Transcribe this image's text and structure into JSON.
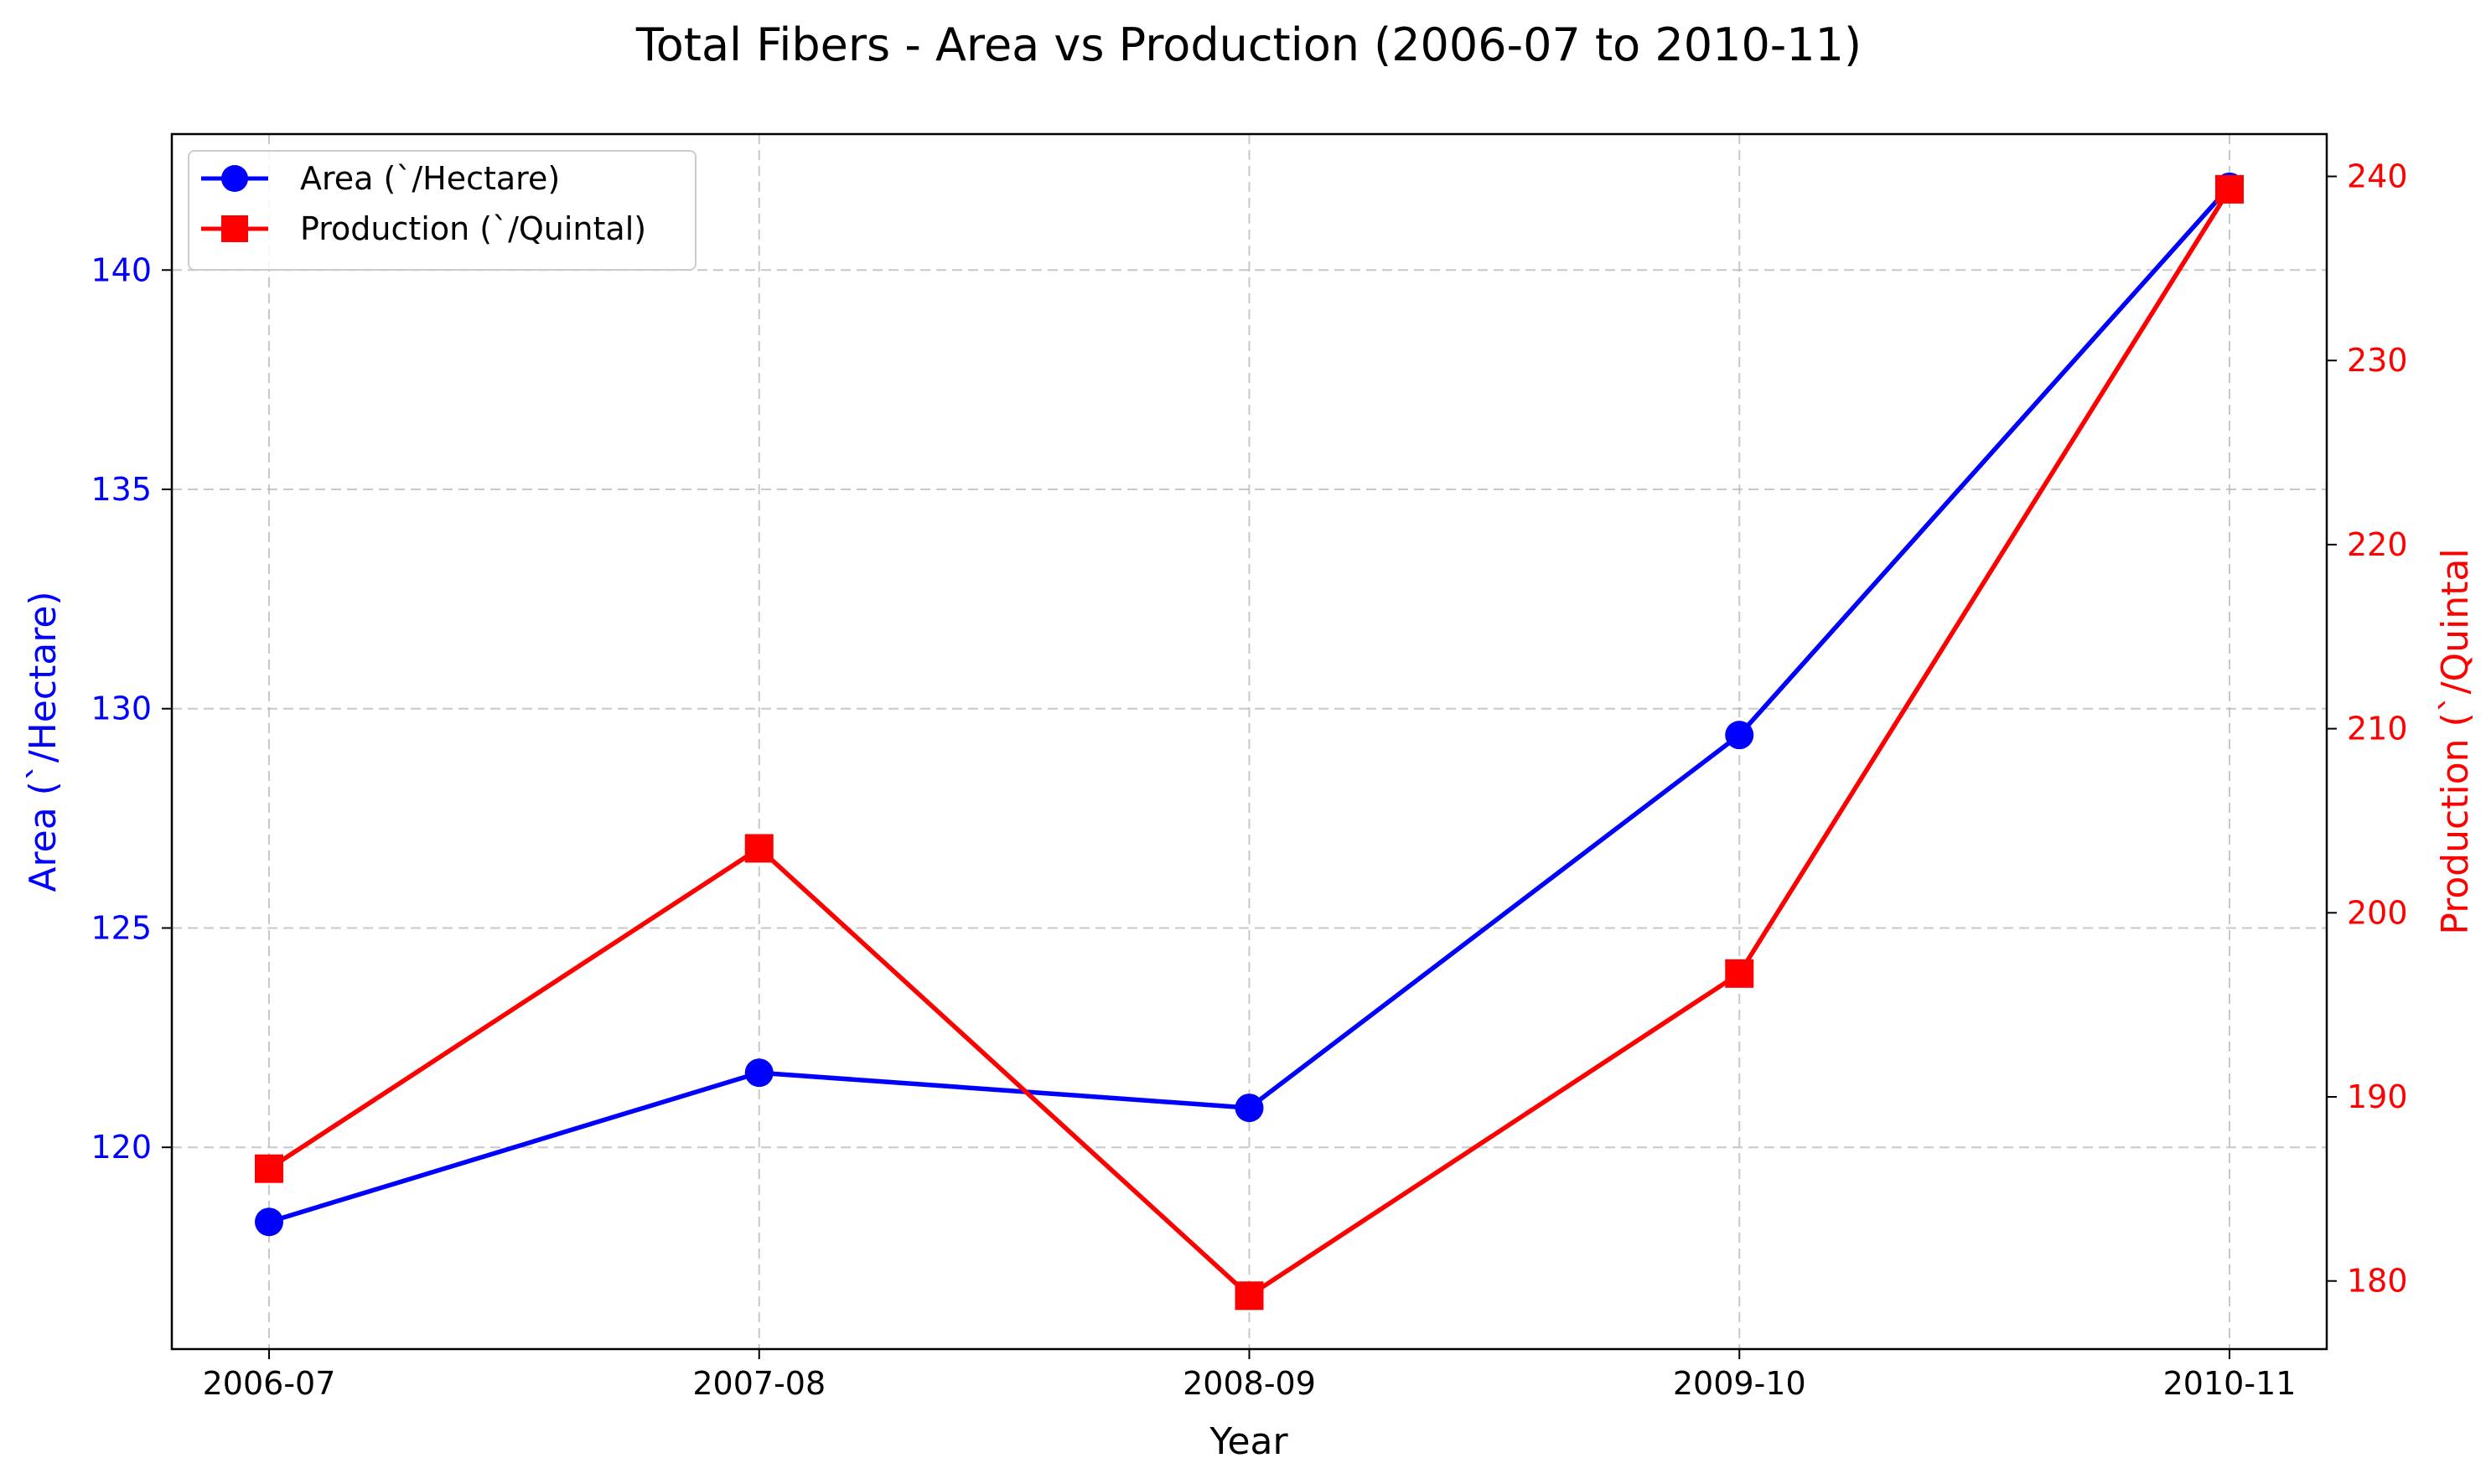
{
  "chart_data": {
    "type": "line",
    "title": "Total Fibers - Area vs Production (2006-07 to 2010-11)",
    "xlabel": "Year",
    "ylabel_left": "Area (`/Hectare)",
    "ylabel_right": "Production (`/Quintal",
    "categories": [
      "2006-07",
      "2007-08",
      "2008-09",
      "2009-10",
      "2010-11"
    ],
    "series": [
      {
        "name": "Area (`/Hectare)",
        "axis": "left",
        "color": "#0000ff",
        "marker": "circle",
        "values": [
          118.3,
          121.7,
          120.9,
          129.4,
          141.9
        ]
      },
      {
        "name": "Production (`/Quintal)",
        "axis": "right",
        "color": "#ff0000",
        "marker": "square",
        "values": [
          186.1,
          203.5,
          179.2,
          196.7,
          239.3
        ]
      }
    ],
    "ylim_left": [
      115.4,
      143.1
    ],
    "ylim_right": [
      176.3,
      242.3
    ],
    "yticks_left": [
      120,
      125,
      130,
      135,
      140
    ],
    "yticks_right": [
      180,
      190,
      200,
      210,
      220,
      230,
      240
    ],
    "left_axis_color": "#0000ff",
    "right_axis_color": "#ff0000",
    "grid": true,
    "legend_position": "upper-left"
  }
}
